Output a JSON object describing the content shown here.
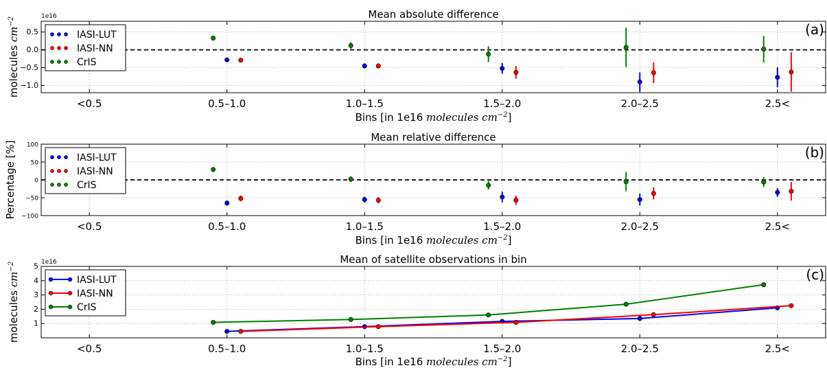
{
  "chart_data": [
    {
      "type": "scatter",
      "panel_tag": "(a)",
      "title": "Mean absolute difference",
      "xlabel": "Bins [in 1e16 ",
      "xlabel_math": "molecules cm",
      "xlabel_sup": "−2",
      "xlabel_end": "]",
      "ylabel": "molecules ",
      "ylabel_math": "cm",
      "ylabel_sup": "−2",
      "multiplier": "1e16",
      "categories": [
        "<0.5",
        "0.5–1.0",
        "1.0–1.5",
        "1.5–2.0",
        "2.0–2.5",
        "2.5<"
      ],
      "ylim": [
        -1.2,
        0.8
      ],
      "yticks": [
        -1.0,
        -0.5,
        0.0,
        0.5
      ],
      "ytick_labels": [
        "−1.0",
        "−0.5",
        "0.0",
        "0.5"
      ],
      "zero_line": true,
      "grid": true,
      "legend": "top-left",
      "series": [
        {
          "name": "IASI-LUT",
          "color": "#0000ff",
          "x": [
            1.0,
            2.0,
            3.0,
            4.0,
            5.0
          ],
          "y": [
            -0.28,
            -0.45,
            -0.52,
            -0.9,
            -0.77
          ],
          "err": [
            0.03,
            0.05,
            0.15,
            0.27,
            0.28
          ]
        },
        {
          "name": "IASI-NN",
          "color": "#ff0000",
          "x": [
            1.1,
            2.1,
            3.1,
            4.1,
            5.1
          ],
          "y": [
            -0.29,
            -0.45,
            -0.63,
            -0.64,
            -0.62
          ],
          "err": [
            0.04,
            0.07,
            0.18,
            0.29,
            0.55
          ]
        },
        {
          "name": "CrIS",
          "color": "#008000",
          "x": [
            0.9,
            1.9,
            2.9,
            3.9,
            4.9
          ],
          "y": [
            0.33,
            0.12,
            -0.12,
            0.07,
            0.02
          ],
          "err": [
            0.07,
            0.09,
            0.22,
            0.55,
            0.37
          ]
        }
      ]
    },
    {
      "type": "scatter",
      "panel_tag": "(b)",
      "title": "Mean relative difference",
      "xlabel": "Bins [in 1e16 ",
      "xlabel_math": "molecules cm",
      "xlabel_sup": "−2",
      "xlabel_end": "]",
      "ylabel": "Percentage [%]",
      "categories": [
        "<0.5",
        "0.5–1.0",
        "1.0–1.5",
        "1.5–2.0",
        "2.0–2.5",
        "2.5<"
      ],
      "ylim": [
        -100,
        100
      ],
      "yticks": [
        -100,
        -50,
        0,
        50,
        100
      ],
      "ytick_labels": [
        "−100",
        "−50",
        "0",
        "50",
        "100"
      ],
      "zero_line": true,
      "grid": true,
      "legend": "top-left",
      "series": [
        {
          "name": "IASI-LUT",
          "color": "#0000ff",
          "x": [
            1.0,
            2.0,
            3.0,
            4.0,
            5.0
          ],
          "y": [
            -65,
            -55,
            -48,
            -55,
            -35
          ],
          "err": [
            7,
            8,
            15,
            17,
            12
          ]
        },
        {
          "name": "IASI-NN",
          "color": "#ff0000",
          "x": [
            1.1,
            2.1,
            3.1,
            4.1,
            5.1
          ],
          "y": [
            -52,
            -57,
            -57,
            -38,
            -32
          ],
          "err": [
            8,
            9,
            13,
            17,
            26
          ]
        },
        {
          "name": "CrIS",
          "color": "#008000",
          "x": [
            0.9,
            1.9,
            2.9,
            3.9,
            4.9
          ],
          "y": [
            29,
            2,
            -15,
            -5,
            -6
          ],
          "err": [
            7,
            8,
            12,
            27,
            14
          ]
        }
      ]
    },
    {
      "type": "line",
      "panel_tag": "(c)",
      "title": "Mean of satellite observations in bin",
      "xlabel": "Bins [in 1e16 ",
      "xlabel_math": "molecules cm",
      "xlabel_sup": "−2",
      "xlabel_end": "]",
      "ylabel": "molecules ",
      "ylabel_math": "cm",
      "ylabel_sup": "−2",
      "multiplier": "1e16",
      "categories": [
        "<0.5",
        "0.5–1.0",
        "1.0–1.5",
        "1.5–2.0",
        "2.0–2.5",
        "2.5<"
      ],
      "ylim": [
        0,
        5
      ],
      "yticks": [
        1,
        2,
        3,
        4,
        5
      ],
      "ytick_labels": [
        "1",
        "2",
        "3",
        "4",
        "5"
      ],
      "grid": true,
      "legend": "top-left",
      "series": [
        {
          "name": "IASI-LUT",
          "color": "#0000ff",
          "x": [
            1.0,
            2.0,
            3.0,
            4.0,
            5.0
          ],
          "y": [
            0.45,
            0.78,
            1.15,
            1.35,
            2.1
          ]
        },
        {
          "name": "IASI-NN",
          "color": "#ff0000",
          "x": [
            1.1,
            2.1,
            3.1,
            4.1,
            5.1
          ],
          "y": [
            0.45,
            0.78,
            1.08,
            1.62,
            2.25
          ]
        },
        {
          "name": "CrIS",
          "color": "#008000",
          "x": [
            0.9,
            1.9,
            2.9,
            3.9,
            4.9
          ],
          "y": [
            1.08,
            1.28,
            1.6,
            2.35,
            3.72
          ]
        }
      ]
    }
  ]
}
